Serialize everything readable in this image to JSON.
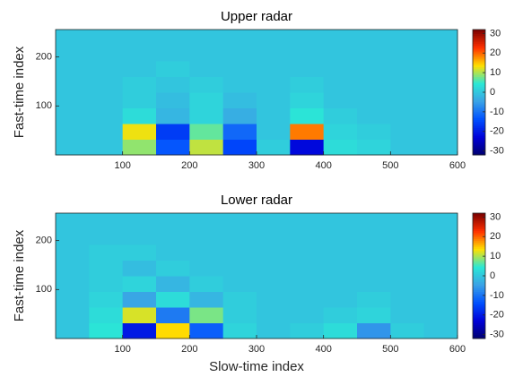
{
  "chart_data": [
    {
      "type": "heatmap",
      "title": "Upper radar",
      "ylabel": "Fast-time index",
      "xlim": [
        0,
        600
      ],
      "ylim": [
        0,
        256
      ],
      "xticks": [
        100,
        200,
        300,
        400,
        500,
        600
      ],
      "yticks": [
        100,
        200
      ],
      "clim": [
        -32,
        32
      ],
      "cticks": [
        30,
        20,
        10,
        0,
        -10,
        -20,
        -30
      ],
      "colormap": [
        "#00006e",
        "#0000d8",
        "#0050ff",
        "#3aa2e6",
        "#2ae8d6",
        "#ffe000",
        "#ff3000",
        "#7a0000"
      ],
      "z": [
        [
          0,
          0,
          9,
          -13,
          11,
          -15,
          1,
          -22,
          3,
          2,
          0,
          0
        ],
        [
          0,
          0,
          13,
          -16,
          7,
          -11,
          0,
          19,
          2,
          1,
          0,
          0
        ],
        [
          0,
          0,
          3,
          -2,
          2,
          -3,
          0,
          4,
          1,
          0,
          0,
          0
        ],
        [
          0,
          0,
          1,
          -1,
          2,
          -1,
          0,
          2,
          0,
          0,
          0,
          0
        ],
        [
          0,
          0,
          1,
          0,
          1,
          0,
          0,
          1,
          0,
          0,
          0,
          0
        ],
        [
          0,
          0,
          0,
          1,
          0,
          0,
          0,
          0,
          0,
          0,
          0,
          0
        ],
        [
          0,
          0,
          0,
          0,
          0,
          0,
          0,
          0,
          0,
          0,
          0,
          0
        ],
        [
          0,
          0,
          0,
          0,
          0,
          0,
          0,
          0,
          0,
          0,
          0,
          0
        ]
      ]
    },
    {
      "type": "heatmap",
      "title": "Lower radar",
      "ylabel": "Fast-time index",
      "xlabel": "Slow-time index",
      "xlim": [
        0,
        600
      ],
      "ylim": [
        0,
        256
      ],
      "xticks": [
        100,
        200,
        300,
        400,
        500,
        600
      ],
      "yticks": [
        100,
        200
      ],
      "clim": [
        -32,
        32
      ],
      "cticks": [
        30,
        20,
        10,
        0,
        -10,
        -20,
        -30
      ],
      "colormap": [
        "#00006e",
        "#0000d8",
        "#0050ff",
        "#3aa2e6",
        "#2ae8d6",
        "#ffe000",
        "#ff3000",
        "#7a0000"
      ],
      "z": [
        [
          0,
          4,
          -20,
          14,
          -12,
          2,
          0,
          1,
          3,
          -6,
          1,
          0
        ],
        [
          0,
          3,
          12,
          -9,
          8,
          1,
          0,
          0,
          1,
          2,
          0,
          0
        ],
        [
          0,
          2,
          -4,
          3,
          -2,
          1,
          0,
          0,
          0,
          1,
          0,
          0
        ],
        [
          0,
          1,
          2,
          -2,
          1,
          0,
          0,
          0,
          0,
          0,
          0,
          0
        ],
        [
          0,
          1,
          -1,
          1,
          0,
          0,
          0,
          0,
          0,
          0,
          0,
          0
        ],
        [
          0,
          1,
          1,
          0,
          0,
          0,
          0,
          0,
          0,
          0,
          0,
          0
        ],
        [
          0,
          0,
          0,
          0,
          0,
          0,
          0,
          0,
          0,
          0,
          0,
          0
        ],
        [
          0,
          0,
          0,
          0,
          0,
          0,
          0,
          0,
          0,
          0,
          0,
          0
        ]
      ]
    }
  ]
}
